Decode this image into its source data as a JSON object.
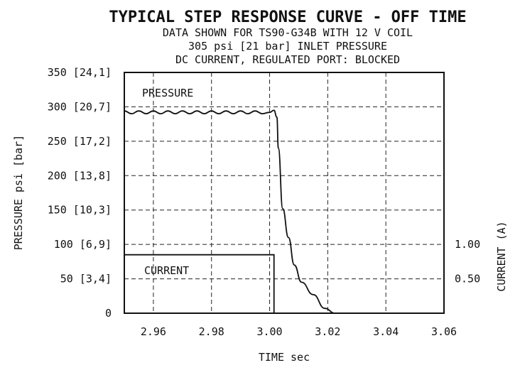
{
  "chart_data": {
    "type": "line",
    "title": "TYPICAL STEP RESPONSE CURVE - OFF TIME",
    "subtitle": [
      "DATA SHOWN FOR TS90-G34B WITH 12 V COIL",
      "305 psi [21 bar] INLET PRESSURE",
      "DC CURRENT, REGULATED PORT: BLOCKED"
    ],
    "xlabel": "TIME sec",
    "ylabel": "PRESSURE psi [bar]",
    "y2label": "CURRENT (A)",
    "xlim": [
      2.95,
      3.06
    ],
    "ylim": [
      0,
      350
    ],
    "x_ticks": [
      2.96,
      2.98,
      3.0,
      3.02,
      3.04,
      3.06
    ],
    "x_tick_labels": [
      "2.96",
      "2.98",
      "3.00",
      "3.02",
      "3.04",
      "3.06"
    ],
    "y_ticks": [
      0,
      50,
      100,
      150,
      200,
      250,
      300,
      350
    ],
    "y_tick_labels": [
      "0",
      "50 [3,4]",
      "100 [6,9]",
      "150 [10,3]",
      "200 [13,8]",
      "250 [17,2]",
      "300 [20,7]",
      "350 [24,1]"
    ],
    "y2_ticks": [
      1.0,
      0.5
    ],
    "y2_tick_labels": [
      "1.00",
      "0.50"
    ],
    "y2_per_y": 0.01,
    "grid": true,
    "series": [
      {
        "name": "PRESSURE",
        "axis": "left",
        "x": [
          2.95,
          2.9525,
          2.955,
          2.9575,
          2.96,
          2.9625,
          2.965,
          2.9675,
          2.97,
          2.9725,
          2.975,
          2.9775,
          2.98,
          2.9825,
          2.985,
          2.9875,
          2.99,
          2.9925,
          2.995,
          2.9975,
          3.0,
          3.0015,
          3.0025,
          3.003,
          3.0045,
          3.0065,
          3.0085,
          3.011,
          3.015,
          3.019,
          3.0225
        ],
        "y": [
          294,
          290,
          294,
          290,
          294,
          290,
          294,
          290,
          294,
          290,
          294,
          290,
          294,
          290,
          294,
          290,
          294,
          290,
          294,
          290,
          292,
          295,
          285,
          240,
          152,
          110,
          70,
          45,
          27,
          7,
          0
        ]
      },
      {
        "name": "CURRENT",
        "axis": "right",
        "x": [
          2.95,
          3.0015,
          3.0015
        ],
        "y2": [
          0.85,
          0.85,
          0
        ]
      }
    ]
  }
}
